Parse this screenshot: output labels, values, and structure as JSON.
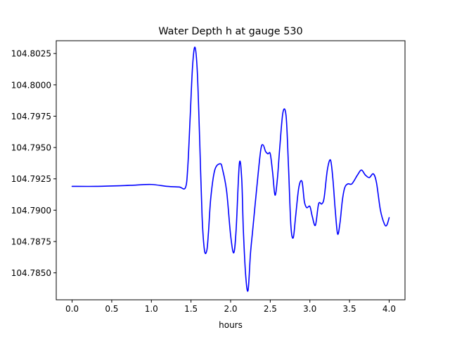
{
  "chart_data": {
    "type": "line",
    "title": "Water Depth h at gauge 530",
    "xlabel": "hours",
    "ylabel": "",
    "xlim": [
      -0.2,
      4.2
    ],
    "ylim": [
      104.78285,
      104.80352
    ],
    "xticks": [
      0.0,
      0.5,
      1.0,
      1.5,
      2.0,
      2.5,
      3.0,
      3.5,
      4.0
    ],
    "xtick_labels": [
      "0.0",
      "0.5",
      "1.0",
      "1.5",
      "2.0",
      "2.5",
      "3.0",
      "3.5",
      "4.0"
    ],
    "yticks": [
      104.785,
      104.7875,
      104.79,
      104.7925,
      104.795,
      104.7975,
      104.8,
      104.8025
    ],
    "ytick_labels": [
      "104.7850",
      "104.7875",
      "104.7900",
      "104.7925",
      "104.7950",
      "104.7975",
      "104.8000",
      "104.8025"
    ],
    "grid": false,
    "series": [
      {
        "color": "#0000ff",
        "x": [
          0.0,
          0.3,
          0.6,
          0.8,
          1.0,
          1.2,
          1.35,
          1.43,
          1.46,
          1.49,
          1.52,
          1.55,
          1.58,
          1.61,
          1.64,
          1.67,
          1.7,
          1.72,
          1.75,
          1.8,
          1.87,
          1.9,
          1.95,
          2.0,
          2.04,
          2.07,
          2.11,
          2.14,
          2.16,
          2.19,
          2.22,
          2.25,
          2.28,
          2.33,
          2.38,
          2.41,
          2.44,
          2.47,
          2.5,
          2.53,
          2.56,
          2.59,
          2.62,
          2.66,
          2.7,
          2.73,
          2.76,
          2.79,
          2.82,
          2.86,
          2.9,
          2.93,
          2.96,
          3.0,
          3.03,
          3.07,
          3.11,
          3.15,
          3.18,
          3.22,
          3.26,
          3.29,
          3.32,
          3.35,
          3.38,
          3.41,
          3.44,
          3.48,
          3.53,
          3.6,
          3.65,
          3.7,
          3.75,
          3.8,
          3.84,
          3.89,
          3.94,
          3.97,
          4.0
        ],
        "y": [
          104.7919,
          104.7919,
          104.79195,
          104.792,
          104.79205,
          104.7919,
          104.79185,
          104.7918,
          104.7935,
          104.7975,
          104.8015,
          104.803,
          104.801,
          104.7955,
          104.7895,
          104.7868,
          104.7868,
          104.7882,
          104.791,
          104.7932,
          104.7937,
          104.7932,
          104.7915,
          104.788,
          104.7866,
          104.7885,
          104.7937,
          104.7925,
          104.7885,
          104.7848,
          104.7836,
          104.7865,
          104.7885,
          104.7918,
          104.7948,
          104.7952,
          104.7947,
          104.7945,
          104.7945,
          104.793,
          104.7912,
          104.7925,
          104.795,
          104.7978,
          104.7975,
          104.7935,
          104.7888,
          104.7878,
          104.7895,
          104.7918,
          104.7923,
          104.7907,
          104.7902,
          104.7903,
          104.7895,
          104.7888,
          104.7905,
          104.7905,
          104.791,
          104.7932,
          104.794,
          104.7925,
          104.79,
          104.7881,
          104.789,
          104.7908,
          104.7918,
          104.7921,
          104.7921,
          104.7928,
          104.7932,
          104.7928,
          104.7926,
          104.7929,
          104.7922,
          104.79,
          104.7889,
          104.7888,
          104.7894
        ]
      }
    ]
  }
}
